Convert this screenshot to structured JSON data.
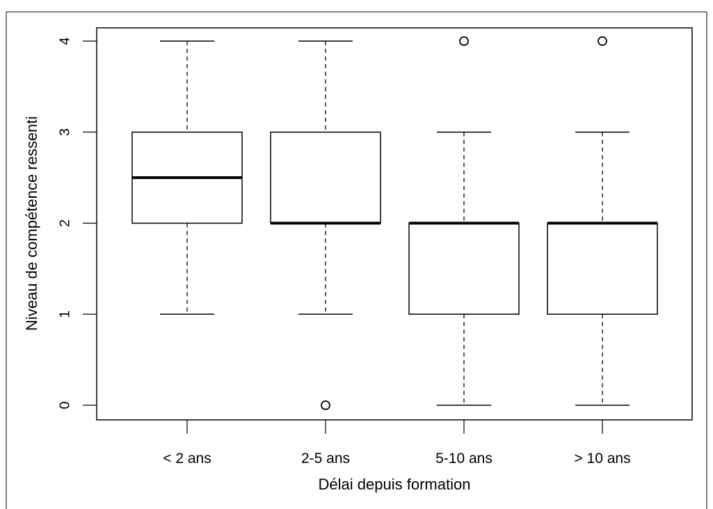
{
  "chart_data": {
    "type": "box",
    "title": "",
    "xlabel": "Délai depuis formation",
    "ylabel": "Niveau de compétence ressenti",
    "ylim": [
      0,
      4
    ],
    "yticks": [
      "0",
      "1",
      "2",
      "3",
      "4"
    ],
    "categories": [
      "< 2 ans",
      "2-5 ans",
      "5-10 ans",
      "> 10 ans"
    ],
    "boxes": [
      {
        "category": "< 2 ans",
        "whisker_low": 1,
        "q1": 2,
        "median": 2.5,
        "q3": 3,
        "whisker_high": 4,
        "outliers": []
      },
      {
        "category": "2-5 ans",
        "whisker_low": 1,
        "q1": 2,
        "median": 2,
        "q3": 3,
        "whisker_high": 4,
        "outliers": [
          0
        ]
      },
      {
        "category": "5-10 ans",
        "whisker_low": 0,
        "q1": 1,
        "median": 2,
        "q3": 2,
        "whisker_high": 3,
        "outliers": [
          4
        ]
      },
      {
        "category": "> 10 ans",
        "whisker_low": 0,
        "q1": 1,
        "median": 2,
        "q3": 2,
        "whisker_high": 3,
        "outliers": [
          4
        ]
      }
    ],
    "grid": false,
    "legend": "none"
  }
}
